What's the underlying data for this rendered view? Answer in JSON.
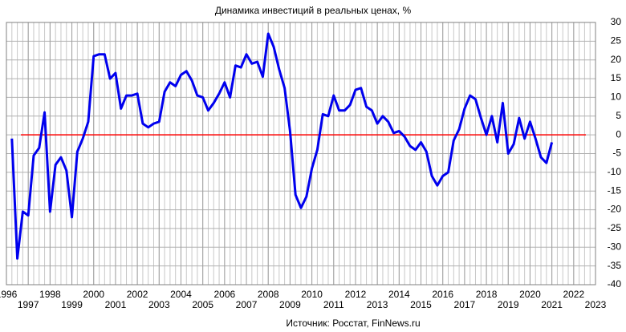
{
  "chart_data": {
    "type": "line",
    "title": "Динамика инвестиций в реальных ценах, %",
    "source": "Источник: Росстат, FinNews.ru",
    "x": [
      1996.25,
      1996.5,
      1996.75,
      1997,
      1997.25,
      1997.5,
      1997.75,
      1998,
      1998.25,
      1998.5,
      1998.75,
      1999,
      1999.25,
      1999.5,
      1999.75,
      2000,
      2000.25,
      2000.5,
      2000.75,
      2001,
      2001.25,
      2001.5,
      2001.75,
      2002,
      2002.25,
      2002.5,
      2002.75,
      2003,
      2003.25,
      2003.5,
      2003.75,
      2004,
      2004.25,
      2004.5,
      2004.75,
      2005,
      2005.25,
      2005.5,
      2005.75,
      2006,
      2006.25,
      2006.5,
      2006.75,
      2007,
      2007.25,
      2007.5,
      2007.75,
      2008,
      2008.25,
      2008.5,
      2008.75,
      2009,
      2009.25,
      2009.5,
      2009.75,
      2010,
      2010.25,
      2010.5,
      2010.75,
      2011,
      2011.25,
      2011.5,
      2011.75,
      2012,
      2012.25,
      2012.5,
      2012.75,
      2013,
      2013.25,
      2013.5,
      2013.75,
      2014,
      2014.25,
      2014.5,
      2014.75,
      2015,
      2015.25,
      2015.5,
      2015.75,
      2016,
      2016.25,
      2016.5,
      2016.75,
      2017,
      2017.25,
      2017.5,
      2017.75,
      2018,
      2018.25,
      2018.5,
      2018.75,
      2019,
      2019.25,
      2019.5,
      2019.75,
      2020,
      2020.25,
      2020.5,
      2020.75,
      2021
    ],
    "values": [
      -1,
      -33,
      -20.5,
      -21.5,
      -5.5,
      -3.5,
      6,
      -20.5,
      -8,
      -6,
      -9.5,
      -22,
      -4.5,
      -1,
      3.5,
      21,
      21.5,
      21.5,
      15,
      16.5,
      7,
      10.5,
      10.5,
      11,
      3,
      2,
      3,
      3.5,
      11.5,
      14,
      13,
      16,
      17,
      14.5,
      10.5,
      10,
      6.5,
      8.5,
      11,
      14,
      10,
      18.5,
      18,
      21.5,
      19,
      19.5,
      15.5,
      27,
      23.5,
      17.5,
      12.5,
      1,
      -16,
      -19.5,
      -16.5,
      -9,
      -4,
      5.5,
      5,
      10.5,
      6.5,
      6.5,
      8,
      12,
      12.5,
      7.5,
      6.5,
      3,
      5,
      3.5,
      0.5,
      1,
      -0.5,
      -3,
      -4,
      -2,
      -4.5,
      -11,
      -13.5,
      -11,
      -10,
      -1.5,
      1.5,
      7,
      10.5,
      9.5,
      4.5,
      0,
      5,
      -2,
      8.5,
      -5,
      -2.5,
      4.5,
      -1,
      3.5,
      -1,
      -6,
      -7.5,
      -2
    ],
    "color": "#0000ee",
    "hline": {
      "value": 0,
      "color": "#ff0000"
    },
    "xlim": [
      1996,
      2023
    ],
    "xticks": [
      1996,
      1997,
      1998,
      1999,
      2000,
      2001,
      2002,
      2003,
      2004,
      2005,
      2006,
      2007,
      2008,
      2009,
      2010,
      2011,
      2012,
      2013,
      2014,
      2015,
      2016,
      2017,
      2018,
      2019,
      2020,
      2021,
      2022,
      2023
    ],
    "ylim": [
      -40,
      30
    ],
    "yticks": [
      -40,
      -35,
      -30,
      -25,
      -20,
      -15,
      -10,
      -5,
      0,
      5,
      10,
      15,
      20,
      25,
      30
    ],
    "grid": true
  }
}
